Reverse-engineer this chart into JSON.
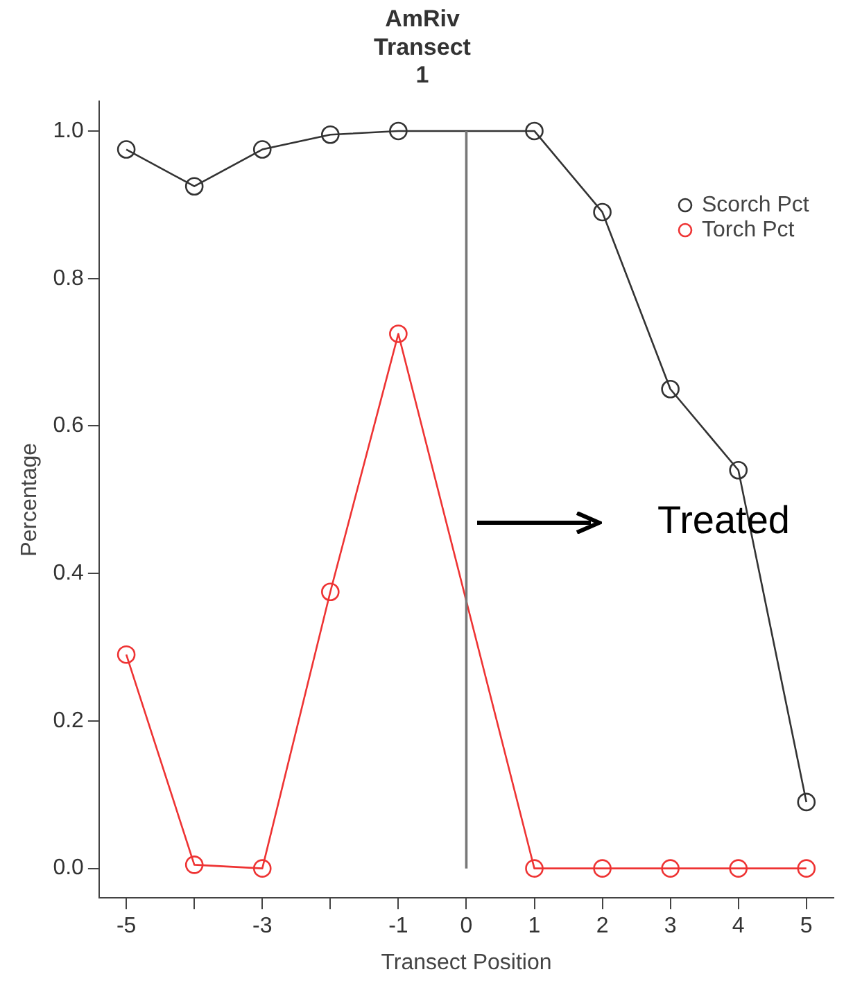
{
  "chart_data": {
    "type": "line",
    "title": "AmRiv\nTransect\n1",
    "xlabel": "Transect Position",
    "ylabel": "Percentage",
    "x": [
      -5,
      -4,
      -3,
      -2,
      -1,
      1,
      2,
      3,
      4,
      5
    ],
    "series": [
      {
        "name": "Scorch Pct",
        "color": "#333333",
        "values": [
          0.975,
          0.925,
          0.975,
          0.995,
          1.0,
          1.0,
          0.89,
          0.65,
          0.54,
          0.09
        ]
      },
      {
        "name": "Torch Pct",
        "color": "#ee3333",
        "values": [
          0.29,
          0.005,
          0.0,
          0.375,
          0.725,
          0.0,
          0.0,
          0.0,
          0.0,
          0.0
        ]
      }
    ],
    "xlim": [
      -5.4,
      5.4
    ],
    "ylim": [
      -0.04,
      1.04
    ],
    "xticks": [
      -5,
      {
        "value": -4,
        "label": null
      },
      -3,
      {
        "value": -2,
        "label": null
      },
      -1,
      0,
      1,
      2,
      3,
      4,
      5
    ],
    "yticks": [
      {
        "value": 0,
        "label": "0.0"
      },
      {
        "value": 0.2,
        "label": "0.2"
      },
      {
        "value": 0.4,
        "label": "0.4"
      },
      {
        "value": 0.6,
        "label": "0.6"
      },
      {
        "value": 0.8,
        "label": "0.8"
      },
      {
        "value": 1,
        "label": "1.0"
      }
    ],
    "ref_lines": [
      {
        "axis": "x",
        "value": 0,
        "color": "#777777"
      }
    ],
    "annotations": [
      "Treated"
    ],
    "legend": "top right",
    "marker": "circle",
    "line_style": "solid",
    "grid": false
  }
}
